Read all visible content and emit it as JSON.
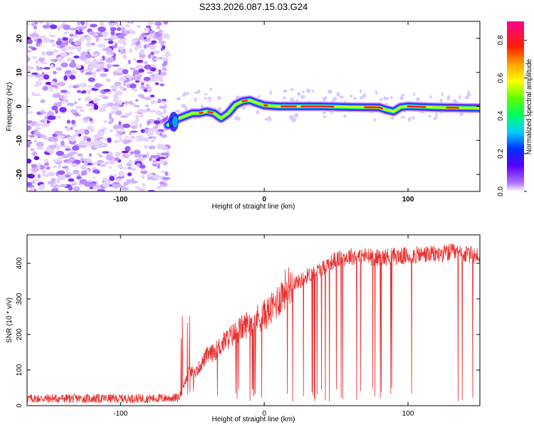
{
  "title": "S233.2026.087.15.03.G24",
  "chart_data": [
    {
      "type": "heatmap",
      "xlabel": "Height of straight line (km)",
      "ylabel": "Frequency (Hz)",
      "xlim": [
        -165,
        150
      ],
      "ylim": [
        -25,
        25
      ],
      "xticks": [
        -100,
        0,
        100
      ],
      "yticks": [
        -20,
        -10,
        0,
        10,
        20
      ],
      "noise_region_x": [
        -165,
        -67
      ],
      "ridge": {
        "x": [
          -67,
          -62,
          -56,
          -50,
          -45,
          -40,
          -35,
          -30,
          -25,
          -20,
          -15,
          -10,
          -5,
          0,
          10,
          20,
          40,
          60,
          80,
          85,
          90,
          95,
          100,
          120,
          150
        ],
        "freq": [
          -5.5,
          -4,
          -3,
          -2,
          -2,
          -1.5,
          -2,
          -3.5,
          -2,
          0.5,
          1.5,
          1.8,
          1,
          0.3,
          0,
          0,
          0,
          -0.2,
          -0.3,
          -1,
          -1.5,
          -0.2,
          0,
          -0.3,
          -0.5
        ]
      },
      "colorbar": {
        "label": "Normalized spectral amplitude",
        "range": [
          0.0,
          0.9
        ],
        "ticks": [
          0.0,
          0.2,
          0.4,
          0.6,
          0.8
        ]
      }
    },
    {
      "type": "line",
      "xlabel": "Height of straight line (km)",
      "ylabel": "SNR (10 * v/v)",
      "xlim": [
        -165,
        150
      ],
      "ylim": [
        0,
        480
      ],
      "xticks": [
        -100,
        0,
        100
      ],
      "yticks": [
        0,
        100,
        200,
        300,
        400
      ],
      "series": [
        {
          "name": "SNR",
          "color": "#e83030",
          "x": [
            -165,
            -140,
            -120,
            -100,
            -80,
            -60,
            -57,
            -55,
            -52,
            -48,
            -45,
            -40,
            -35,
            -30,
            -25,
            -20,
            -15,
            -10,
            -5,
            0,
            5,
            10,
            15,
            20,
            25,
            30,
            35,
            40,
            45,
            50,
            60,
            70,
            80,
            90,
            100,
            110,
            120,
            130,
            140,
            150
          ],
          "y": [
            20,
            20,
            20,
            20,
            20,
            22,
            35,
            70,
            100,
            90,
            110,
            140,
            150,
            170,
            190,
            205,
            220,
            235,
            245,
            255,
            270,
            300,
            330,
            345,
            350,
            365,
            375,
            385,
            400,
            410,
            420,
            420,
            415,
            420,
            420,
            425,
            425,
            430,
            425,
            420
          ]
        }
      ]
    }
  ]
}
